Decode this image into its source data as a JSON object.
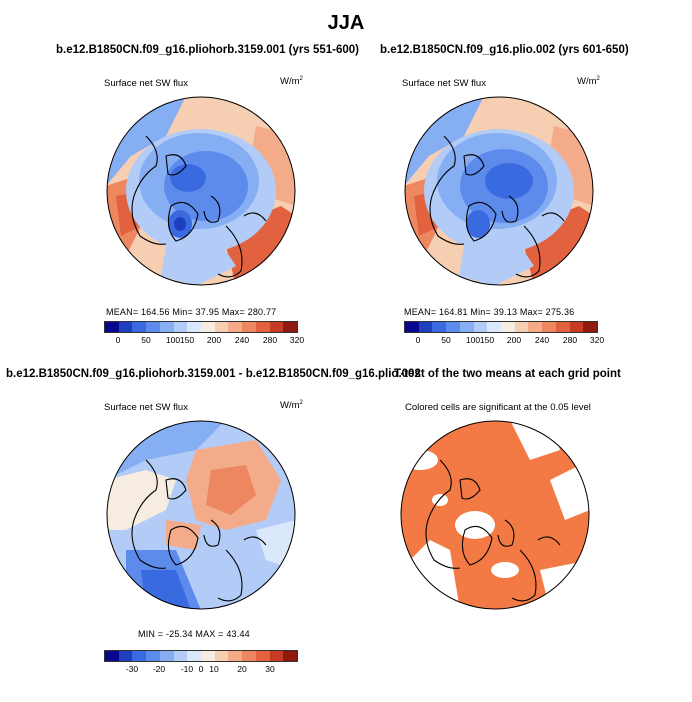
{
  "figure": {
    "title": "JJA"
  },
  "panels": [
    {
      "id": "p1",
      "title": "b.e12.B1850CN.f09_g16.pliohorb.3159.001 (yrs 551-600)",
      "subtitle": "Surface net SW flux",
      "units": "W/m",
      "units_sup": "2",
      "stats": "MEAN= 164.56   Min=  37.95   Max= 280.77"
    },
    {
      "id": "p2",
      "title": "b.e12.B1850CN.f09_g16.plio.002 (yrs 601-650)",
      "subtitle": "Surface net SW flux",
      "units": "W/m",
      "units_sup": "2",
      "stats": "MEAN= 164.81   Min=  39.13   Max= 275.36"
    },
    {
      "id": "p3",
      "title": "b.e12.B1850CN.f09_g16.pliohorb.3159.001 - b.e12.B1850CN.f09_g16.plio.002",
      "subtitle": "Surface net SW flux",
      "units": "W/m",
      "units_sup": "2",
      "stats": "MIN = -25.34  MAX =  43.44"
    },
    {
      "id": "p4",
      "title": "T-test of the two means at each grid point",
      "subtitle": "Colored cells are significant at the 0.05 level"
    }
  ],
  "colorbars": {
    "absolute": {
      "ticks": [
        "0",
        "50",
        "100",
        "150",
        "200",
        "240",
        "280",
        "320"
      ]
    },
    "difference": {
      "ticks": [
        "-30",
        "-20",
        "-10",
        "0",
        "10",
        "20",
        "30"
      ]
    }
  },
  "colors": {
    "abs_palette": [
      "#08088c",
      "#1f3fc1",
      "#3a6ae0",
      "#5c8bec",
      "#86aef3",
      "#b3ccf7",
      "#dbe7fa",
      "#f7ece1",
      "#f6cfb2",
      "#f3ab89",
      "#ec8760",
      "#e2613f",
      "#c73b25",
      "#8e1a0f"
    ],
    "diff_palette": [
      "#08088c",
      "#1f3fc1",
      "#3a6ae0",
      "#5c8bec",
      "#86aef3",
      "#b3ccf7",
      "#dbe7fa",
      "#f7ece1",
      "#f6cfb2",
      "#f3ab89",
      "#ec8760",
      "#e2613f",
      "#c73b25",
      "#8e1a0f"
    ],
    "ttest_fill": "#f47a45"
  }
}
